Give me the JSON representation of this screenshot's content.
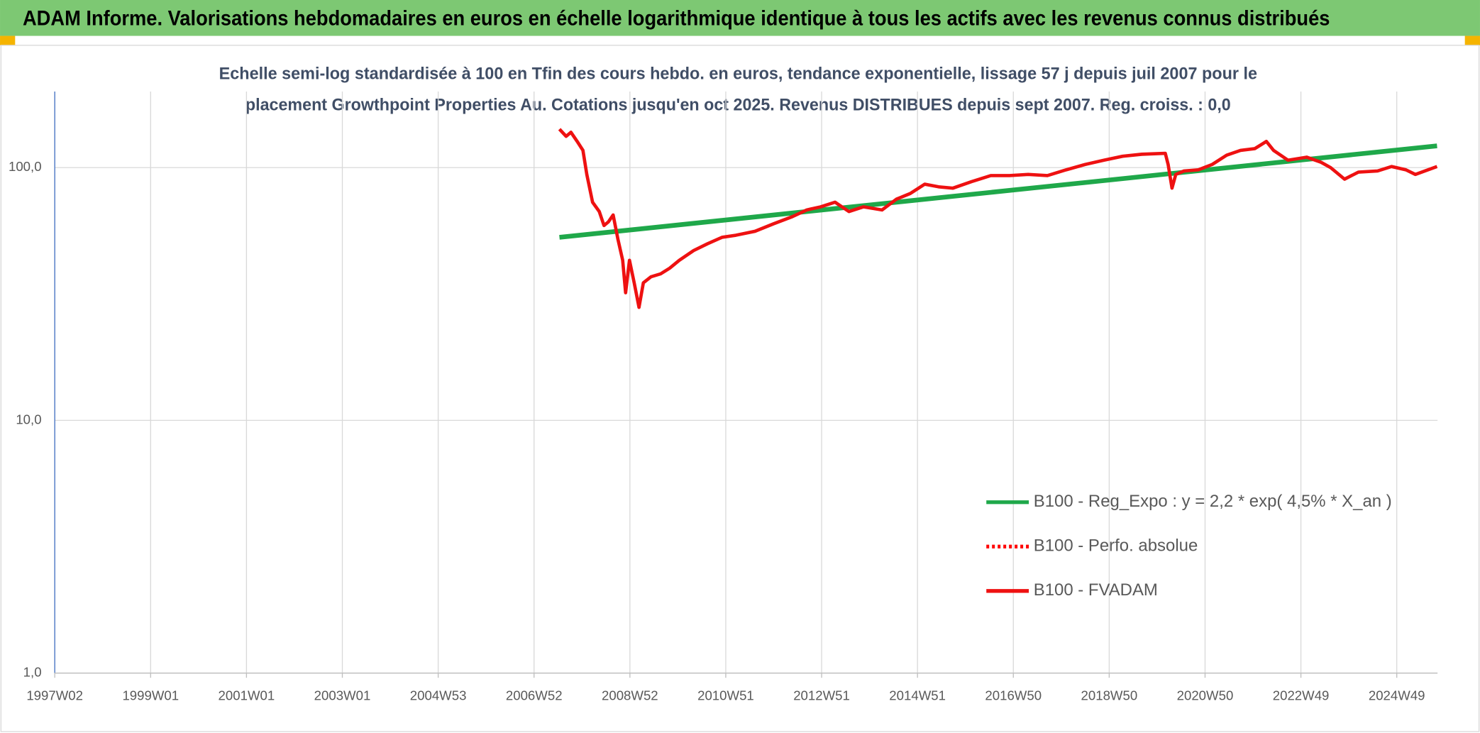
{
  "chart_data": {
    "type": "line",
    "title": "ADAM Informe. Valorisations hebdomadaires en euros en échelle logarithmique identique à tous les actifs avec les revenus connus distribués",
    "subtitle": [
      "Echelle semi-log standardisée à 100 en Tfin des cours hebdo. en euros, tendance exponentielle, lissage 57 j depuis juil 2007 pour le",
      "placement Growthpoint Properties Au. Cotations jusqu'en oct 2025. Revenus DISTRIBUES depuis sept 2007. Reg. croiss. : 0,0"
    ],
    "xlim": [
      1997,
      2025.85
    ],
    "xticks": [
      {
        "value": 1997,
        "label": "1997W02"
      },
      {
        "value": 1999,
        "label": "1999W01"
      },
      {
        "value": 2001,
        "label": "2001W01"
      },
      {
        "value": 2003,
        "label": "2003W01"
      },
      {
        "value": 2005,
        "label": "2004W53"
      },
      {
        "value": 2007,
        "label": "2006W52"
      },
      {
        "value": 2009,
        "label": "2008W52"
      },
      {
        "value": 2011,
        "label": "2010W51"
      },
      {
        "value": 2013,
        "label": "2012W51"
      },
      {
        "value": 2015,
        "label": "2014W51"
      },
      {
        "value": 2017,
        "label": "2016W50"
      },
      {
        "value": 2019,
        "label": "2018W50"
      },
      {
        "value": 2021,
        "label": "2020W50"
      },
      {
        "value": 2023,
        "label": "2022W49"
      },
      {
        "value": 2025,
        "label": "2024W49"
      }
    ],
    "ylim": [
      1,
      200
    ],
    "yticks": [
      {
        "value": 1,
        "label": "1,0"
      },
      {
        "value": 10,
        "label": "10,0"
      },
      {
        "value": 100,
        "label": "100,0"
      }
    ],
    "log_y": true,
    "grid": true,
    "legend_position": "right",
    "series": [
      {
        "name": "B100 - Reg_Expo : y = 2,2 * exp( 4,5% *  X_an )",
        "color": "#1fa84a",
        "style": "solid",
        "x": [
          2007.53,
          2025.84
        ],
        "values": [
          53,
          122
        ]
      },
      {
        "name": "B100 - Perfo. absolue",
        "color": "#ff0000",
        "style": "dotted",
        "x": [],
        "values": []
      },
      {
        "name": "B100 - FVADAM",
        "color": "#ee1111",
        "style": "solid",
        "x": [
          2007.53,
          2007.67,
          2007.77,
          2007.9,
          2008.02,
          2008.1,
          2008.22,
          2008.36,
          2008.46,
          2008.55,
          2008.65,
          2008.75,
          2008.85,
          2008.91,
          2008.99,
          2009.09,
          2009.19,
          2009.28,
          2009.44,
          2009.64,
          2009.83,
          2010.03,
          2010.33,
          2010.62,
          2010.92,
          2011.21,
          2011.61,
          2012.0,
          2012.39,
          2012.69,
          2012.98,
          2013.28,
          2013.57,
          2013.87,
          2014.26,
          2014.56,
          2014.85,
          2015.15,
          2015.44,
          2015.74,
          2016.13,
          2016.53,
          2016.92,
          2017.31,
          2017.71,
          2018.1,
          2018.5,
          2018.89,
          2019.28,
          2019.68,
          2020.17,
          2020.23,
          2020.31,
          2020.39,
          2020.56,
          2020.86,
          2021.15,
          2021.45,
          2021.74,
          2022.04,
          2022.28,
          2022.43,
          2022.73,
          2023.12,
          2023.42,
          2023.62,
          2023.91,
          2024.2,
          2024.6,
          2024.89,
          2025.19,
          2025.39,
          2025.84
        ],
        "values": [
          142,
          133,
          138,
          127,
          117,
          94,
          73,
          67,
          59,
          61,
          65,
          52,
          43,
          32,
          43,
          35,
          28,
          35,
          37,
          38,
          40,
          43,
          47,
          50,
          53,
          54,
          56,
          60,
          64,
          68,
          70,
          73,
          67,
          70,
          68,
          75,
          79,
          86,
          84,
          83,
          88,
          93,
          93,
          94,
          93,
          98,
          103,
          107,
          111,
          113,
          114,
          103,
          83,
          94,
          97,
          98,
          103,
          112,
          117,
          119,
          127,
          117,
          107,
          110,
          105,
          100,
          90,
          96,
          97,
          101,
          98,
          94,
          101
        ]
      }
    ]
  }
}
